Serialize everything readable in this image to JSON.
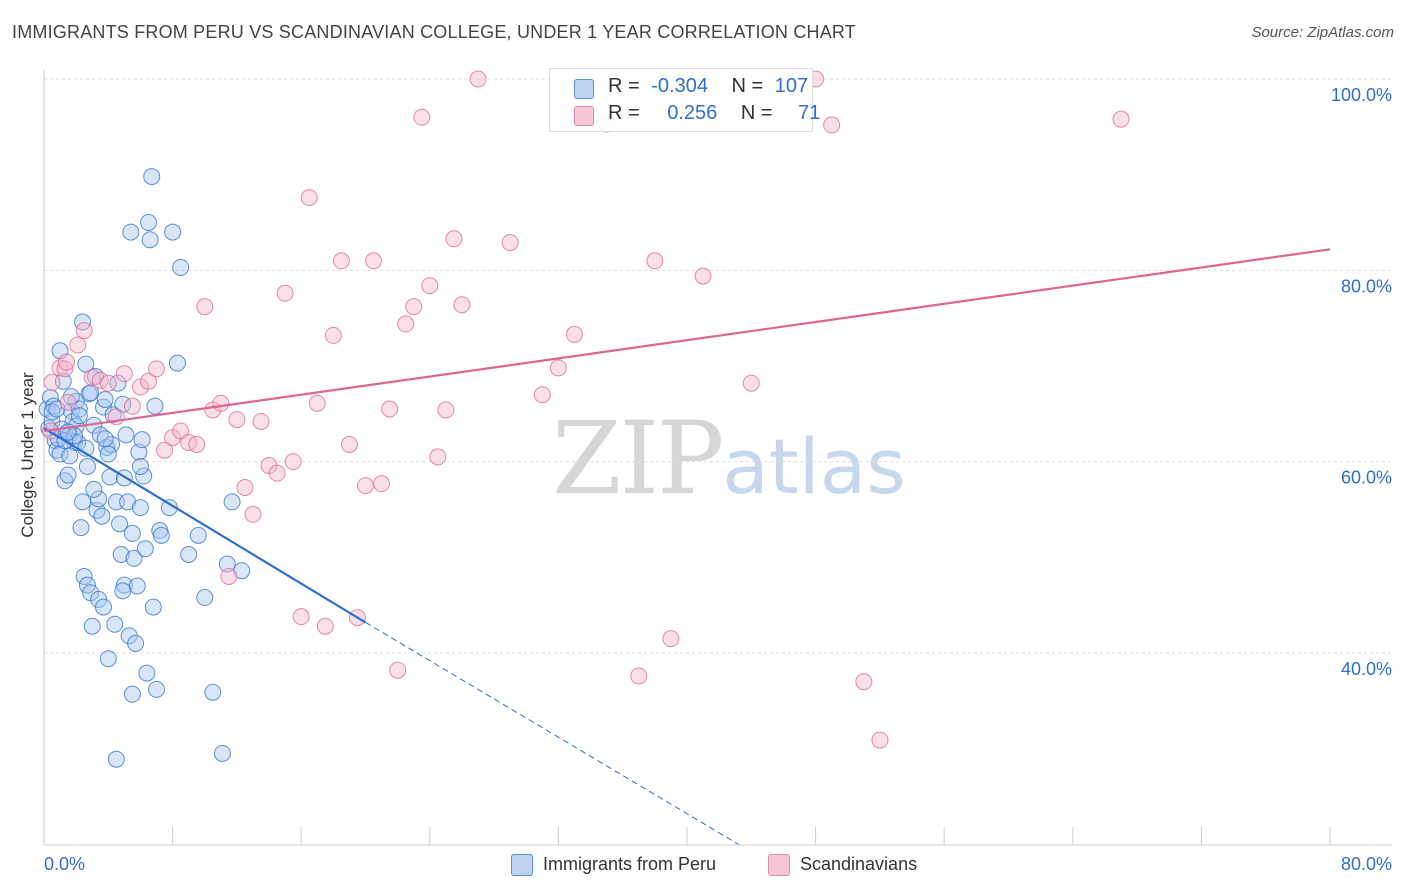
{
  "title": "IMMIGRANTS FROM PERU VS SCANDINAVIAN COLLEGE, UNDER 1 YEAR CORRELATION CHART",
  "source": "Source: ZipAtlas.com",
  "watermark": {
    "zip": "ZIP",
    "atlas": "atlas"
  },
  "colors": {
    "blue": "#2e6fd0",
    "blue_fill": "#a8c8f0",
    "pink": "#e06490",
    "pink_fill": "#f5b8cc",
    "grid": "#dddddd",
    "tick_text": "#2e6fd0"
  },
  "legend_top": {
    "rows": [
      {
        "r_label": "R =",
        "r_value": "-0.304",
        "n_label": "N =",
        "n_value": "107",
        "series": "blue"
      },
      {
        "r_label": "R =",
        "r_value": "0.256",
        "n_label": "N =",
        "n_value": "71",
        "series": "pink"
      }
    ]
  },
  "legend_bottom": [
    "Immigrants from Peru",
    "Scandinavians"
  ],
  "chart_data": {
    "type": "scatter",
    "title": "IMMIGRANTS FROM PERU VS SCANDINAVIAN COLLEGE, UNDER 1 YEAR CORRELATION CHART",
    "xlabel": "",
    "ylabel": "College, Under 1 year",
    "xlim": [
      0,
      80
    ],
    "ylim": [
      20,
      102
    ],
    "x_tick_labels": [
      "0.0%",
      "80.0%"
    ],
    "y_ticks": [
      40,
      60,
      80,
      100
    ],
    "y_tick_labels": [
      "40.0%",
      "60.0%",
      "80.0%",
      "100.0%"
    ],
    "grid": true,
    "series": [
      {
        "name": "Immigrants from Peru",
        "color": "blue",
        "r": -0.304,
        "n": 107,
        "trend": {
          "x0": 0,
          "y0": 63.5,
          "x1": 20,
          "y1": 43.2,
          "dash_to_x": 43.2,
          "dash_to_y": 20
        },
        "points": [
          [
            0.2,
            65.5
          ],
          [
            0.3,
            63.5
          ],
          [
            0.4,
            66.7
          ],
          [
            0.5,
            64.2
          ],
          [
            0.6,
            65.8
          ],
          [
            0.7,
            62.2
          ],
          [
            0.8,
            61.2
          ],
          [
            1.0,
            71.6
          ],
          [
            1.0,
            60.8
          ],
          [
            1.2,
            68.4
          ],
          [
            1.3,
            58.0
          ],
          [
            1.4,
            63.0
          ],
          [
            1.5,
            58.6
          ],
          [
            1.6,
            62.8
          ],
          [
            1.7,
            65.3
          ],
          [
            1.8,
            64.2
          ],
          [
            1.9,
            62.0
          ],
          [
            2.0,
            66.3
          ],
          [
            2.1,
            62.0
          ],
          [
            2.2,
            65.5
          ],
          [
            2.3,
            53.1
          ],
          [
            2.4,
            74.6
          ],
          [
            2.5,
            48.0
          ],
          [
            2.6,
            70.2
          ],
          [
            2.7,
            47.1
          ],
          [
            2.8,
            67.1
          ],
          [
            2.9,
            46.3
          ],
          [
            3.0,
            42.8
          ],
          [
            3.1,
            63.8
          ],
          [
            3.2,
            68.9
          ],
          [
            3.3,
            54.9
          ],
          [
            3.4,
            45.6
          ],
          [
            3.5,
            62.8
          ],
          [
            3.6,
            54.3
          ],
          [
            3.7,
            65.7
          ],
          [
            3.8,
            66.5
          ],
          [
            3.9,
            61.5
          ],
          [
            4.0,
            39.4
          ],
          [
            4.1,
            58.4
          ],
          [
            4.2,
            61.8
          ],
          [
            4.3,
            64.9
          ],
          [
            4.4,
            43.0
          ],
          [
            4.5,
            55.8
          ],
          [
            4.6,
            68.2
          ],
          [
            4.7,
            53.5
          ],
          [
            4.8,
            50.3
          ],
          [
            4.9,
            66.0
          ],
          [
            5.0,
            47.1
          ],
          [
            5.1,
            62.8
          ],
          [
            5.2,
            55.8
          ],
          [
            5.3,
            41.8
          ],
          [
            5.4,
            84.0
          ],
          [
            5.5,
            35.7
          ],
          [
            5.6,
            49.9
          ],
          [
            5.7,
            41.0
          ],
          [
            5.8,
            47.0
          ],
          [
            5.9,
            61.0
          ],
          [
            6.0,
            55.2
          ],
          [
            6.1,
            62.3
          ],
          [
            6.2,
            58.5
          ],
          [
            6.3,
            50.9
          ],
          [
            6.4,
            37.9
          ],
          [
            6.5,
            85.0
          ],
          [
            6.6,
            83.2
          ],
          [
            6.7,
            89.8
          ],
          [
            6.8,
            44.8
          ],
          [
            6.9,
            65.8
          ],
          [
            7.0,
            36.2
          ],
          [
            7.2,
            52.8
          ],
          [
            7.3,
            52.3
          ],
          [
            8.0,
            84.0
          ],
          [
            8.3,
            70.3
          ],
          [
            8.5,
            80.3
          ],
          [
            9.0,
            50.3
          ],
          [
            10.0,
            45.8
          ],
          [
            10.5,
            35.9
          ],
          [
            11.1,
            29.5
          ],
          [
            11.4,
            49.3
          ],
          [
            12.3,
            48.6
          ],
          [
            4.5,
            28.9
          ],
          [
            0.9,
            62.4
          ],
          [
            1.1,
            63.4
          ],
          [
            1.6,
            60.6
          ],
          [
            2.0,
            63.7
          ],
          [
            2.4,
            55.8
          ],
          [
            2.9,
            67.2
          ],
          [
            3.4,
            56.1
          ],
          [
            4.0,
            60.8
          ],
          [
            1.9,
            62.7
          ],
          [
            3.7,
            44.8
          ],
          [
            4.9,
            46.5
          ],
          [
            0.5,
            65.2
          ],
          [
            1.3,
            62.2
          ],
          [
            2.6,
            61.4
          ],
          [
            3.1,
            57.1
          ],
          [
            5.5,
            52.5
          ],
          [
            6.0,
            59.5
          ],
          [
            7.8,
            55.2
          ],
          [
            9.6,
            52.3
          ],
          [
            11.7,
            55.8
          ],
          [
            0.8,
            65.5
          ],
          [
            1.5,
            63.1
          ],
          [
            2.7,
            59.5
          ],
          [
            3.8,
            62.4
          ],
          [
            5.0,
            58.3
          ],
          [
            1.7,
            66.8
          ],
          [
            2.2,
            64.8
          ]
        ]
      },
      {
        "name": "Scandinavians",
        "color": "pink",
        "r": 0.256,
        "n": 71,
        "trend": {
          "x0": 0,
          "y0": 63.2,
          "x1": 80,
          "y1": 82.2
        },
        "points": [
          [
            0.4,
            63.2
          ],
          [
            0.5,
            68.3
          ],
          [
            1.0,
            69.8
          ],
          [
            1.3,
            69.7
          ],
          [
            1.4,
            70.4
          ],
          [
            1.5,
            66.2
          ],
          [
            2.1,
            72.2
          ],
          [
            2.5,
            73.7
          ],
          [
            3.0,
            68.8
          ],
          [
            3.5,
            68.5
          ],
          [
            4.0,
            68.2
          ],
          [
            4.5,
            64.7
          ],
          [
            5.0,
            69.2
          ],
          [
            5.5,
            65.8
          ],
          [
            6.0,
            67.8
          ],
          [
            6.5,
            68.4
          ],
          [
            7.0,
            69.7
          ],
          [
            7.5,
            61.2
          ],
          [
            8.0,
            62.5
          ],
          [
            8.5,
            63.2
          ],
          [
            9.0,
            62.0
          ],
          [
            9.5,
            61.8
          ],
          [
            10.0,
            76.2
          ],
          [
            10.5,
            65.4
          ],
          [
            11.0,
            66.1
          ],
          [
            11.5,
            48.0
          ],
          [
            12.0,
            64.4
          ],
          [
            12.5,
            57.3
          ],
          [
            13.0,
            54.5
          ],
          [
            13.5,
            64.2
          ],
          [
            14.0,
            59.6
          ],
          [
            14.5,
            58.8
          ],
          [
            15.0,
            77.6
          ],
          [
            15.5,
            60.0
          ],
          [
            16.0,
            43.8
          ],
          [
            16.5,
            87.6
          ],
          [
            17.0,
            66.1
          ],
          [
            17.5,
            42.8
          ],
          [
            18.0,
            73.2
          ],
          [
            18.5,
            81.0
          ],
          [
            19.0,
            61.8
          ],
          [
            19.5,
            43.7
          ],
          [
            20.0,
            57.5
          ],
          [
            20.5,
            81.0
          ],
          [
            21.0,
            57.7
          ],
          [
            21.5,
            65.5
          ],
          [
            22.0,
            38.2
          ],
          [
            22.5,
            74.4
          ],
          [
            23.0,
            76.2
          ],
          [
            23.5,
            96.0
          ],
          [
            24.0,
            78.4
          ],
          [
            24.5,
            60.5
          ],
          [
            25.0,
            65.4
          ],
          [
            25.5,
            83.3
          ],
          [
            26.0,
            76.4
          ],
          [
            27.0,
            100.0
          ],
          [
            29.0,
            82.9
          ],
          [
            31.0,
            67.0
          ],
          [
            32.0,
            69.8
          ],
          [
            33.0,
            73.3
          ],
          [
            35.0,
            95.3
          ],
          [
            37.0,
            37.6
          ],
          [
            38.0,
            81.0
          ],
          [
            39.0,
            41.5
          ],
          [
            41.0,
            79.4
          ],
          [
            44.0,
            68.2
          ],
          [
            48.0,
            100.0
          ],
          [
            49.0,
            95.2
          ],
          [
            51.0,
            37.0
          ],
          [
            52.0,
            30.9
          ],
          [
            67.0,
            95.8
          ]
        ]
      }
    ]
  }
}
